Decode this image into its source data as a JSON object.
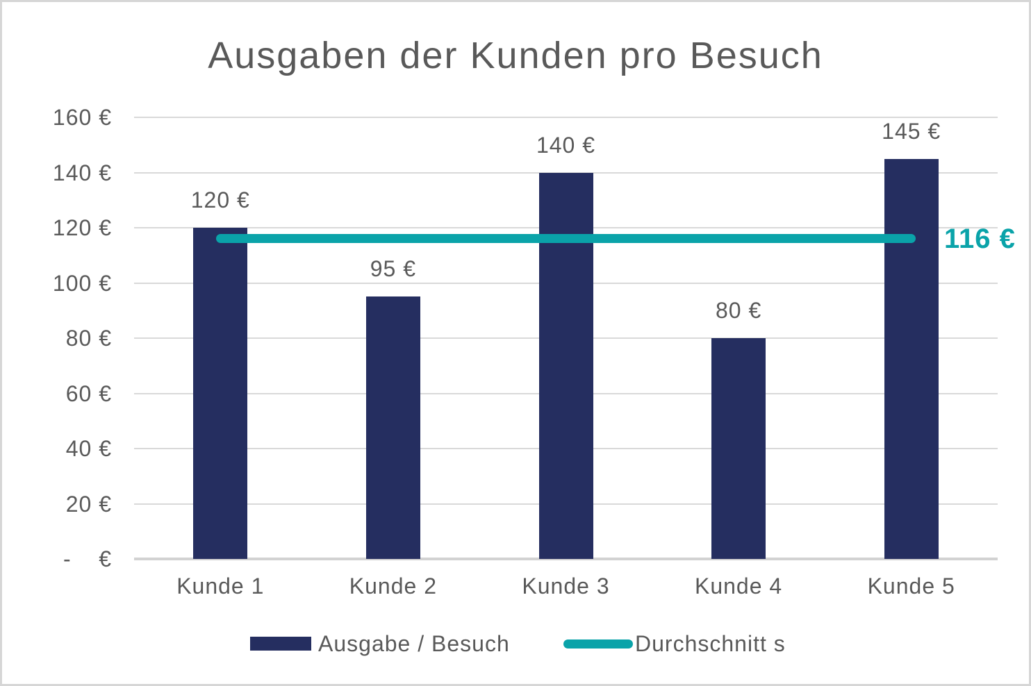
{
  "title": "Ausgaben der Kunden pro Besuch",
  "chart_data": {
    "type": "bar",
    "title": "Ausgaben der Kunden pro Besuch",
    "categories": [
      "Kunde 1",
      "Kunde 2",
      "Kunde 3",
      "Kunde 4",
      "Kunde 5"
    ],
    "series": [
      {
        "name": "Ausgabe / Besuch",
        "values": [
          120,
          95,
          140,
          80,
          145
        ]
      }
    ],
    "data_labels": [
      "120 €",
      "95 €",
      "140 €",
      "80 €",
      "145 €"
    ],
    "average_line": {
      "name": "Durchschnitt s",
      "value": 116,
      "label": "116 €"
    },
    "xlabel": "",
    "ylabel": "",
    "ylim": [
      0,
      160
    ],
    "grid": true,
    "legend_position": "bottom",
    "y_axis": {
      "tick_values": [
        0,
        20,
        40,
        60,
        80,
        100,
        120,
        140,
        160
      ],
      "tick_labels": [
        "-    €",
        "20 €",
        "40 €",
        "60 €",
        "80 €",
        "100 €",
        "120 €",
        "140 €",
        "160 €"
      ]
    },
    "colors": {
      "bar": "#252e60",
      "average_line": "#0aa3a9",
      "text": "#595959",
      "grid": "#d9d9d9",
      "axis": "#d2d2d2"
    }
  },
  "legend": {
    "items": [
      {
        "label": "Ausgabe / Besuch",
        "swatch": "bar-swatch"
      },
      {
        "label": "Durchschnitt s",
        "swatch": "line-swatch"
      }
    ]
  }
}
